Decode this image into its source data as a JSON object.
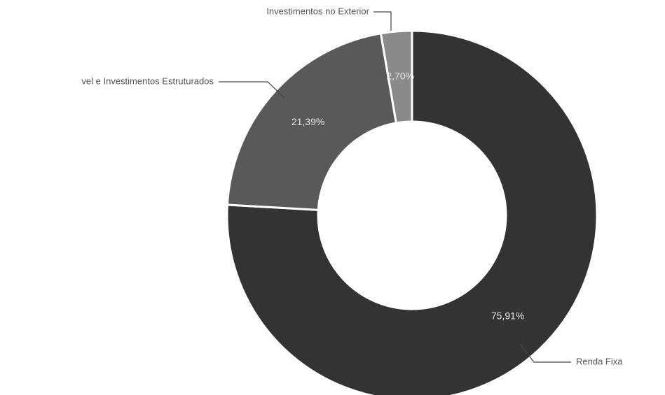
{
  "chart_data": {
    "type": "donut",
    "categories": [
      "Renda Fixa",
      "vel e Investimentos Estruturados",
      "Investimentos no Exterior"
    ],
    "values": [
      75.91,
      21.39,
      2.7
    ],
    "value_labels": [
      "75,91%",
      "21,39%",
      "2,70%"
    ],
    "colors": [
      "#333333",
      "#595959",
      "#8a8a8a"
    ]
  }
}
